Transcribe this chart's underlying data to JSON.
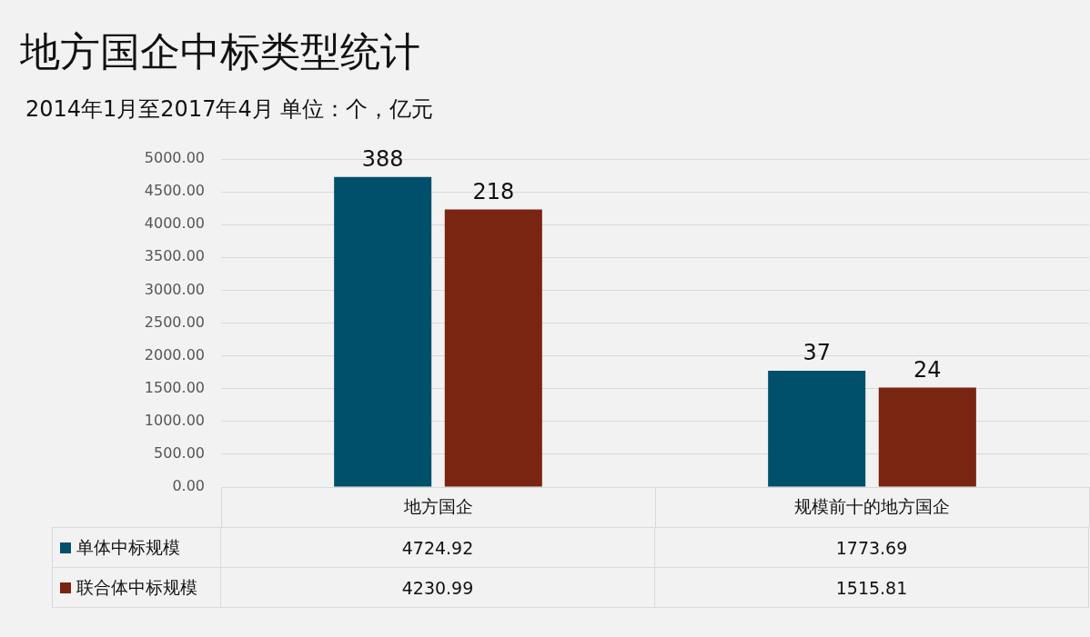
{
  "chart_data": {
    "type": "bar",
    "title": "地方国企中标类型统计",
    "subtitle": "2014年1月至2017年4月 单位：个，亿元",
    "categories": [
      "地方国企",
      "规模前十的地方国企"
    ],
    "series": [
      {
        "name": "单体中标规模",
        "color": "#004f6b",
        "values": [
          4724.92,
          1773.69
        ],
        "value_labels": [
          "4724.92",
          "1773.69"
        ]
      },
      {
        "name": "联合体中标规模",
        "color": "#7a2412",
        "values": [
          4230.99,
          1515.81
        ],
        "value_labels": [
          "4230.99",
          "1515.81"
        ]
      }
    ],
    "annotations": [
      "388",
      "218",
      "37",
      "24"
    ],
    "ylim": [
      0,
      5000
    ],
    "yticks": [
      {
        "value": 0,
        "label": "0.00"
      },
      {
        "value": 500,
        "label": "500.00"
      },
      {
        "value": 1000,
        "label": "1000.00"
      },
      {
        "value": 1500,
        "label": "1500.00"
      },
      {
        "value": 2000,
        "label": "2000.00"
      },
      {
        "value": 2500,
        "label": "2500.00"
      },
      {
        "value": 3000,
        "label": "3000.00"
      },
      {
        "value": 3500,
        "label": "3500.00"
      },
      {
        "value": 4000,
        "label": "4000.00"
      },
      {
        "value": 4500,
        "label": "4500.00"
      },
      {
        "value": 5000,
        "label": "5000.00"
      }
    ],
    "grid": "y",
    "legend": "bottom"
  }
}
